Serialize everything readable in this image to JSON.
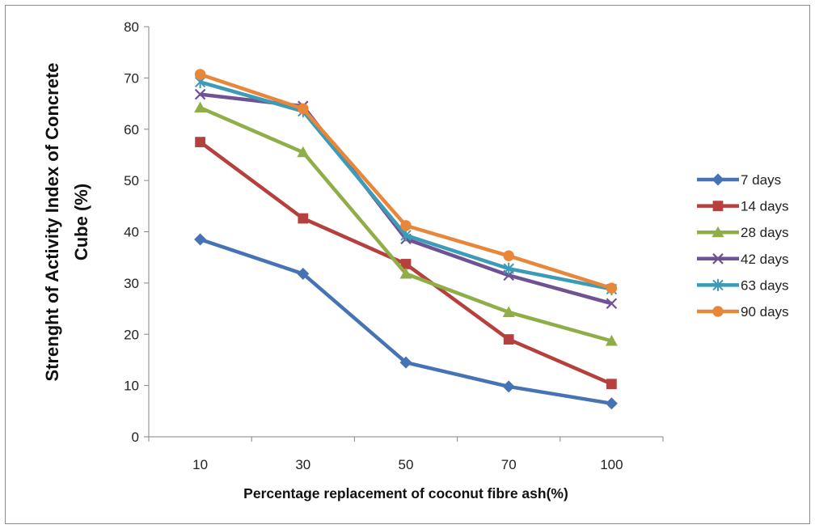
{
  "chart_data": {
    "type": "line",
    "title": "",
    "xlabel": "Percentage replacement of coconut fibre ash(%)",
    "ylabel_lines": [
      "Strenght of Activity Index of Concrete",
      "Cube (%)"
    ],
    "categories": [
      "10",
      "30",
      "50",
      "70",
      "100"
    ],
    "ylim": [
      0,
      80
    ],
    "yticks": [
      0,
      10,
      20,
      30,
      40,
      50,
      60,
      70,
      80
    ],
    "grid": false,
    "legend_position": "right",
    "series": [
      {
        "name": "7 days",
        "color": "#4573B4",
        "marker": "diamond",
        "values": [
          38.5,
          31.8,
          14.5,
          9.8,
          6.5
        ]
      },
      {
        "name": "14 days",
        "color": "#B5403D",
        "marker": "square",
        "values": [
          57.5,
          42.6,
          33.7,
          19.0,
          10.3
        ]
      },
      {
        "name": "28 days",
        "color": "#8FAE48",
        "marker": "triangle",
        "values": [
          64.2,
          55.5,
          31.8,
          24.3,
          18.7
        ]
      },
      {
        "name": "42 days",
        "color": "#6E5293",
        "marker": "x",
        "values": [
          66.8,
          64.5,
          38.6,
          31.5,
          26.0
        ]
      },
      {
        "name": "63 days",
        "color": "#3C9CB8",
        "marker": "star",
        "values": [
          69.2,
          63.5,
          39.3,
          32.8,
          28.8
        ]
      },
      {
        "name": "90 days",
        "color": "#E8863A",
        "marker": "circle",
        "values": [
          70.7,
          64.0,
          41.2,
          35.3,
          29.0
        ]
      }
    ]
  }
}
